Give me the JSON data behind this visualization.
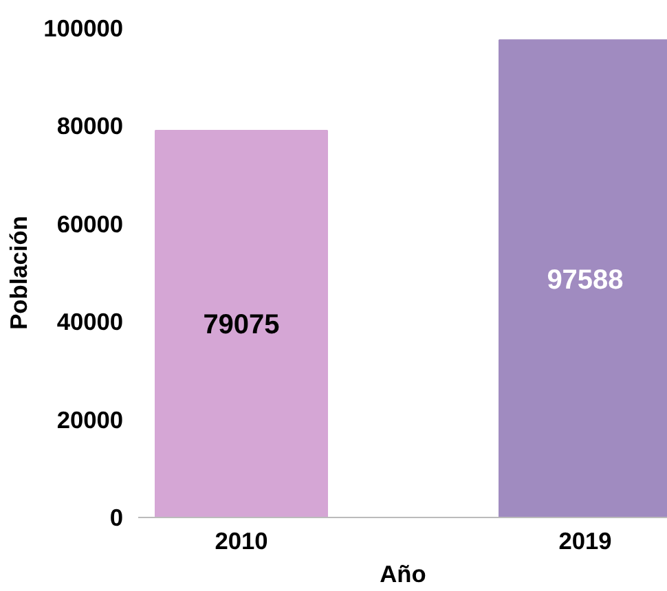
{
  "chart_data": {
    "type": "bar",
    "xlabel": "Año",
    "ylabel": "Población",
    "categories": [
      "2010",
      "2019"
    ],
    "values": [
      79075,
      97588
    ],
    "colors": [
      "#d5a6d5",
      "#a08bc0"
    ],
    "ylim": [
      0,
      100000
    ],
    "yticks": [
      0,
      20000,
      40000,
      60000,
      80000,
      100000
    ],
    "data_labels": true,
    "grid": false
  }
}
